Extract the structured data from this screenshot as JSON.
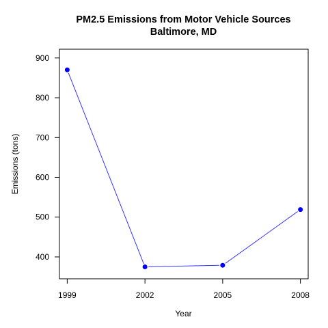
{
  "chart_data": {
    "type": "line",
    "title": "PM2.5 Emissions from Motor Vehicle Sources",
    "subtitle": "Baltimore, MD",
    "xlabel": "Year",
    "ylabel": "Emissions (tons)",
    "x": [
      1999,
      2002,
      2005,
      2008
    ],
    "x_tick_labels": [
      "1999",
      "2002",
      "2005",
      "2008"
    ],
    "series": [
      {
        "values": [
          870,
          375,
          379,
          519
        ]
      }
    ],
    "y_ticks": [
      400,
      500,
      600,
      700,
      800,
      900
    ],
    "y_tick_labels": [
      "400",
      "500",
      "600",
      "700",
      "800",
      "900"
    ],
    "xlim": [
      1998.7,
      2008.3
    ],
    "ylim": [
      345,
      922
    ],
    "grid": false,
    "colors": {
      "line": "#3333ff",
      "points": "#0000ff",
      "axis": "#000000"
    }
  }
}
